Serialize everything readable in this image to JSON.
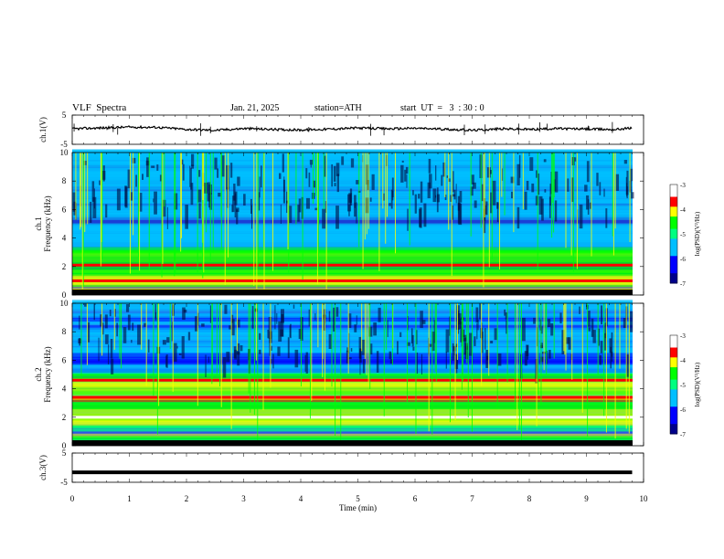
{
  "header": {
    "title": "VLF  Spectra",
    "date": "Jan. 21, 2025",
    "station": "station=ATH",
    "start": "start  UT  =   3  : 30 : 0"
  },
  "chart_data": [
    {
      "type": "line",
      "panel": "ch1-waveform",
      "ylabel": "ch.1(V)",
      "ylim": [
        -5,
        5
      ],
      "yticks": [
        "5",
        "-5"
      ],
      "xlim": [
        0,
        10
      ],
      "series": [
        {
          "x": [
            0,
            0.5,
            1,
            1.5,
            2,
            2.5,
            3,
            3.5,
            4,
            4.5,
            5,
            5.5,
            6,
            6.5,
            7,
            7.5,
            8,
            8.5,
            9,
            9.5,
            9.8
          ],
          "values": [
            0.3,
            0.6,
            0.9,
            0.8,
            0.1,
            -0.2,
            0.4,
            0.1,
            -0.1,
            0.2,
            0.6,
            0.3,
            0.5,
            0.2,
            -0.2,
            0.3,
            0.1,
            0.4,
            0.2,
            0.1,
            0.6
          ]
        }
      ]
    },
    {
      "type": "heatmap",
      "panel": "ch1-spectrogram",
      "ylabel": "ch.1\nFrequency (kHz)",
      "ylim": [
        0,
        10
      ],
      "yticks": [
        "0",
        "2",
        "4",
        "6",
        "8",
        "10"
      ],
      "xlim": [
        0,
        10
      ],
      "colorbar": {
        "label": "log(PSD)(V²/Hz)",
        "range": [
          -7,
          -3
        ],
        "ticks": [
          "-3",
          "-4",
          "-5",
          "-6",
          "-7"
        ]
      }
    },
    {
      "type": "heatmap",
      "panel": "ch2-spectrogram",
      "ylabel": "ch.2\nFrequency (kHz)",
      "ylim": [
        0,
        10
      ],
      "yticks": [
        "0",
        "2",
        "4",
        "6",
        "8",
        "10"
      ],
      "xlim": [
        0,
        10
      ],
      "colorbar": {
        "label": "log(PSD)(V²/Hz)",
        "range": [
          -7,
          -3
        ],
        "ticks": [
          "-3",
          "-4",
          "-5",
          "-6",
          "-7"
        ]
      }
    },
    {
      "type": "line",
      "panel": "ch3-waveform",
      "ylabel": "ch.3(V)",
      "ylim": [
        -5,
        5
      ],
      "yticks": [
        "5",
        "-5"
      ],
      "xlim": [
        0,
        10
      ],
      "xlabel": "Time (min)",
      "xticks": [
        "0",
        "1",
        "2",
        "3",
        "4",
        "5",
        "6",
        "7",
        "8",
        "9",
        "10"
      ],
      "series": [
        {
          "x": [
            0,
            9.8
          ],
          "values": [
            -1.6,
            -1.6
          ]
        }
      ]
    }
  ]
}
